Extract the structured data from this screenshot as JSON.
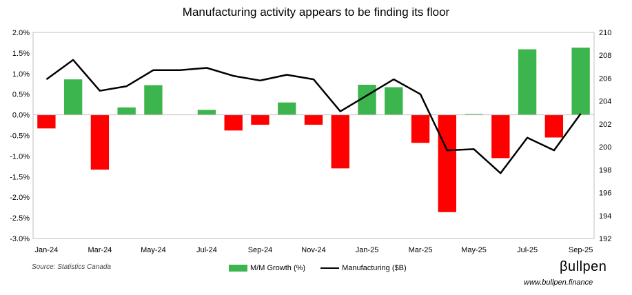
{
  "chart_data": {
    "type": "bar+line",
    "title": "Manufacturing activity appears to be finding its floor",
    "categories": [
      "Jan-24",
      "Feb-24",
      "Mar-24",
      "Apr-24",
      "May-24",
      "Jun-24",
      "Jul-24",
      "Aug-24",
      "Sep-24",
      "Oct-24",
      "Nov-24",
      "Dec-24",
      "Jan-25",
      "Feb-25",
      "Mar-25",
      "Apr-25",
      "May-25",
      "Jun-25",
      "Jul-25",
      "Aug-25",
      "Sep-25"
    ],
    "x_tick_labels": [
      "Jan-24",
      "Mar-24",
      "May-24",
      "Jul-24",
      "Sep-24",
      "Nov-24",
      "Jan-25",
      "Mar-25",
      "May-25",
      "Jul-25",
      "Sep-25"
    ],
    "series": [
      {
        "name": "M/M Growth (%)",
        "type": "bar",
        "axis": "left",
        "positive_color": "#3cb54e",
        "negative_color": "#ff0000",
        "values": [
          -0.33,
          0.86,
          -1.33,
          0.18,
          0.72,
          0.0,
          0.12,
          -0.38,
          -0.24,
          0.3,
          -0.24,
          -1.3,
          0.73,
          0.67,
          -0.68,
          -2.36,
          0.02,
          -1.05,
          1.59,
          -0.55,
          1.63
        ]
      },
      {
        "name": "Manufacturing ($B)",
        "type": "line",
        "axis": "right",
        "color": "#000000",
        "values": [
          205.9,
          207.6,
          204.9,
          205.3,
          206.7,
          206.7,
          206.9,
          206.2,
          205.8,
          206.3,
          205.9,
          203.1,
          204.5,
          205.9,
          204.6,
          199.7,
          199.8,
          197.7,
          200.8,
          199.7,
          202.9
        ]
      }
    ],
    "y_left": {
      "min": -3.0,
      "max": 2.0,
      "step": 0.5,
      "tick_labels": [
        "2.0%",
        "1.5%",
        "1.0%",
        "0.5%",
        "0.0%",
        "-0.5%",
        "-1.0%",
        "-1.5%",
        "-2.0%",
        "-2.5%",
        "-3.0%"
      ]
    },
    "y_right": {
      "min": 192,
      "max": 210,
      "step": 2,
      "tick_labels": [
        "210",
        "208",
        "206",
        "204",
        "202",
        "200",
        "198",
        "196",
        "194",
        "192"
      ]
    },
    "legend_position": "bottom-center",
    "grid": false
  },
  "legend": {
    "bar_label": "M/M Growth (%)",
    "line_label": "Manufacturing ($B)"
  },
  "source": "Source: Statistics Canada",
  "brand": {
    "name": "βullpen",
    "url": "www.bullpen.finance"
  }
}
